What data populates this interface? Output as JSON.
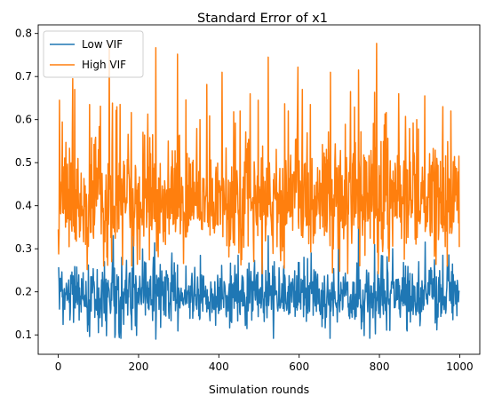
{
  "chart_data": {
    "type": "line",
    "title": "Standard Error of x1",
    "xlabel": "Simulation rounds",
    "ylabel": "",
    "xlim": [
      -50,
      1050
    ],
    "ylim": [
      0.055,
      0.82
    ],
    "x_ticks": [
      0,
      200,
      400,
      600,
      800,
      1000
    ],
    "x_tick_labels": [
      "0",
      "200",
      "400",
      "600",
      "800",
      "1000"
    ],
    "y_ticks": [
      0.1,
      0.2,
      0.3,
      0.4,
      0.5,
      0.6,
      0.7,
      0.8
    ],
    "y_tick_labels": [
      "0.1",
      "0.2",
      "0.3",
      "0.4",
      "0.5",
      "0.6",
      "0.7",
      "0.8"
    ],
    "grid": false,
    "legend_position": "upper-left",
    "n_points": 1000,
    "series": [
      {
        "name": "Low VIF",
        "color": "#1f77b4",
        "mean": 0.19,
        "typical_range": [
          0.14,
          0.26
        ],
        "max": 0.35,
        "min": 0.09,
        "anchor_points": [
          [
            0,
            0.255
          ],
          [
            3,
            0.16
          ],
          [
            8,
            0.23
          ],
          [
            115,
            0.27
          ],
          [
            140,
            0.255
          ],
          [
            158,
            0.28
          ],
          [
            237,
            0.28
          ],
          [
            243,
            0.09
          ],
          [
            283,
            0.29
          ],
          [
            318,
            0.26
          ],
          [
            448,
            0.285
          ],
          [
            508,
            0.31
          ],
          [
            523,
            0.33
          ],
          [
            538,
            0.27
          ],
          [
            698,
            0.33
          ],
          [
            748,
            0.35
          ],
          [
            788,
            0.31
          ],
          [
            833,
            0.3
          ],
          [
            898,
            0.27
          ],
          [
            958,
            0.285
          ],
          [
            965,
            0.15
          ],
          [
            998,
            0.2
          ]
        ]
      },
      {
        "name": "High VIF",
        "color": "#ff7f0e",
        "mean": 0.42,
        "typical_range": [
          0.32,
          0.56
        ],
        "max": 0.777,
        "min": 0.24,
        "anchor_points": [
          [
            0,
            0.345
          ],
          [
            3,
            0.645
          ],
          [
            8,
            0.455
          ],
          [
            36,
            0.695
          ],
          [
            41,
            0.67
          ],
          [
            78,
            0.635
          ],
          [
            113,
            0.26
          ],
          [
            133,
            0.27
          ],
          [
            183,
            0.26
          ],
          [
            203,
            0.275
          ],
          [
            243,
            0.767
          ],
          [
            248,
            0.33
          ],
          [
            297,
            0.752
          ],
          [
            353,
            0.6
          ],
          [
            408,
            0.71
          ],
          [
            453,
            0.62
          ],
          [
            478,
            0.66
          ],
          [
            498,
            0.645
          ],
          [
            523,
            0.745
          ],
          [
            563,
            0.255
          ],
          [
            573,
            0.62
          ],
          [
            608,
            0.67
          ],
          [
            628,
            0.635
          ],
          [
            678,
            0.71
          ],
          [
            728,
            0.665
          ],
          [
            748,
            0.715
          ],
          [
            793,
            0.777
          ],
          [
            798,
            0.38
          ],
          [
            848,
            0.66
          ],
          [
            893,
            0.6
          ],
          [
            913,
            0.655
          ],
          [
            958,
            0.63
          ],
          [
            978,
            0.62
          ],
          [
            998,
            0.515
          ]
        ]
      }
    ]
  }
}
